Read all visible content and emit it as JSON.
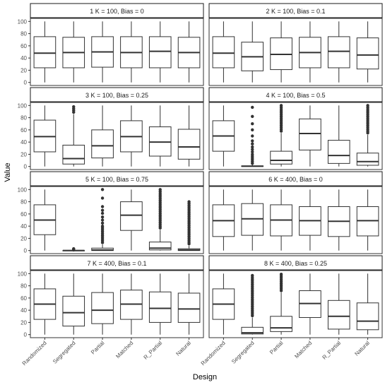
{
  "chart_data": {
    "type": "boxplot",
    "facets": 8,
    "layout": {
      "ncol": 2,
      "nrow": 4
    },
    "xlabel": "Design",
    "ylabel": "Value",
    "categories": [
      "Randomized",
      "Segregated",
      "Partial",
      "Matched",
      "R_Partial",
      "Natural"
    ],
    "yticks": [
      0,
      20,
      40,
      60,
      80,
      100
    ],
    "ylim": [
      -5,
      105
    ],
    "grid": false,
    "panels": [
      {
        "title": "1     K = 100, Bias = 0",
        "boxes": [
          {
            "min": 0,
            "q1": 24,
            "median": 48,
            "q3": 75,
            "max": 100,
            "outliers": []
          },
          {
            "min": 0,
            "q1": 24,
            "median": 49,
            "q3": 74,
            "max": 100,
            "outliers": []
          },
          {
            "min": 0,
            "q1": 25,
            "median": 50,
            "q3": 75,
            "max": 100,
            "outliers": []
          },
          {
            "min": 0,
            "q1": 24,
            "median": 49,
            "q3": 75,
            "max": 100,
            "outliers": []
          },
          {
            "min": 0,
            "q1": 24,
            "median": 51,
            "q3": 75,
            "max": 100,
            "outliers": []
          },
          {
            "min": 0,
            "q1": 24,
            "median": 49,
            "q3": 74,
            "max": 100,
            "outliers": []
          }
        ]
      },
      {
        "title": "2     K = 100, Bias = 0.1",
        "boxes": [
          {
            "min": 0,
            "q1": 24,
            "median": 48,
            "q3": 75,
            "max": 100,
            "outliers": []
          },
          {
            "min": 0,
            "q1": 19,
            "median": 42,
            "q3": 66,
            "max": 100,
            "outliers": []
          },
          {
            "min": 0,
            "q1": 21,
            "median": 46,
            "q3": 73,
            "max": 100,
            "outliers": []
          },
          {
            "min": 0,
            "q1": 24,
            "median": 49,
            "q3": 74,
            "max": 100,
            "outliers": []
          },
          {
            "min": 0,
            "q1": 24,
            "median": 51,
            "q3": 75,
            "max": 100,
            "outliers": []
          },
          {
            "min": 0,
            "q1": 22,
            "median": 45,
            "q3": 73,
            "max": 100,
            "outliers": []
          }
        ]
      },
      {
        "title": "3     K = 100, Bias = 0.25",
        "boxes": [
          {
            "min": 0,
            "q1": 24,
            "median": 49,
            "q3": 76,
            "max": 100,
            "outliers": []
          },
          {
            "min": 0,
            "q1": 4,
            "median": 13,
            "q3": 35,
            "max": 86,
            "outliers": [
              89,
              92,
              95,
              98
            ]
          },
          {
            "min": 0,
            "q1": 14,
            "median": 34,
            "q3": 60,
            "max": 100,
            "outliers": []
          },
          {
            "min": 0,
            "q1": 24,
            "median": 49,
            "q3": 75,
            "max": 100,
            "outliers": []
          },
          {
            "min": 0,
            "q1": 17,
            "median": 40,
            "q3": 65,
            "max": 100,
            "outliers": []
          },
          {
            "min": 0,
            "q1": 12,
            "median": 32,
            "q3": 61,
            "max": 100,
            "outliers": []
          }
        ]
      },
      {
        "title": "4     K = 100, Bias = 0.5",
        "boxes": [
          {
            "min": 0,
            "q1": 25,
            "median": 50,
            "q3": 75,
            "max": 100,
            "outliers": []
          },
          {
            "min": 0,
            "q1": 0,
            "median": 0.5,
            "q3": 1,
            "max": 3,
            "outliers": [
              5,
              8,
              11,
              14,
              17,
              20,
              24,
              28,
              32,
              37,
              42,
              50,
              60,
              70,
              82,
              97
            ]
          },
          {
            "min": 0,
            "q1": 4,
            "median": 10,
            "q3": 25,
            "max": 55,
            "outliers": [
              58,
              61,
              64,
              67,
              70,
              73,
              76,
              79,
              82,
              85,
              88,
              91,
              94,
              97,
              100
            ]
          },
          {
            "min": 0,
            "q1": 27,
            "median": 54,
            "q3": 78,
            "max": 100,
            "outliers": []
          },
          {
            "min": 0,
            "q1": 5,
            "median": 18,
            "q3": 43,
            "max": 100,
            "outliers": []
          },
          {
            "min": 0,
            "q1": 2,
            "median": 8,
            "q3": 22,
            "max": 52,
            "outliers": [
              55,
              58,
              61,
              64,
              67,
              70,
              73,
              76,
              79,
              82,
              85,
              88,
              91,
              94,
              97,
              100
            ]
          }
        ]
      },
      {
        "title": "5     K = 100, Bias = 0.75",
        "boxes": [
          {
            "min": 0,
            "q1": 26,
            "median": 50,
            "q3": 75,
            "max": 100,
            "outliers": []
          },
          {
            "min": 0,
            "q1": 0,
            "median": 0,
            "q3": 0,
            "max": 0,
            "outliers": [
              1,
              2,
              3
            ]
          },
          {
            "min": 0,
            "q1": 0,
            "median": 1,
            "q3": 4,
            "max": 10,
            "outliers": [
              13,
              16,
              19,
              22,
              25,
              28,
              31,
              34,
              37,
              40,
              45,
              50,
              55,
              61,
              66,
              72,
              86,
              100
            ]
          },
          {
            "min": 0,
            "q1": 33,
            "median": 58,
            "q3": 80,
            "max": 100,
            "outliers": []
          },
          {
            "min": 0,
            "q1": 1,
            "median": 4,
            "q3": 14,
            "max": 34,
            "outliers": [
              37,
              40,
              43,
              46,
              49,
              52,
              55,
              58,
              61,
              64,
              67,
              70,
              73,
              76,
              79,
              82,
              85,
              88,
              91,
              94,
              97,
              100
            ]
          },
          {
            "min": 0,
            "q1": 0,
            "median": 1,
            "q3": 3,
            "max": 8,
            "outliers": [
              11,
              14,
              17,
              20,
              23,
              26,
              29,
              32,
              35,
              38,
              41,
              44,
              47,
              50,
              53,
              56,
              59,
              62,
              65,
              68,
              71,
              74,
              77,
              80
            ]
          }
        ]
      },
      {
        "title": "6     K = 400, Bias = 0",
        "boxes": [
          {
            "min": 0,
            "q1": 23,
            "median": 49,
            "q3": 75,
            "max": 100,
            "outliers": []
          },
          {
            "min": 0,
            "q1": 25,
            "median": 52,
            "q3": 77,
            "max": 100,
            "outliers": []
          },
          {
            "min": 0,
            "q1": 24,
            "median": 50,
            "q3": 75,
            "max": 100,
            "outliers": []
          },
          {
            "min": 0,
            "q1": 25,
            "median": 49,
            "q3": 72,
            "max": 100,
            "outliers": []
          },
          {
            "min": 0,
            "q1": 23,
            "median": 48,
            "q3": 72,
            "max": 100,
            "outliers": []
          },
          {
            "min": 0,
            "q1": 24,
            "median": 49,
            "q3": 72,
            "max": 100,
            "outliers": []
          }
        ]
      },
      {
        "title": "7     K = 400, Bias = 0.1",
        "boxes": [
          {
            "min": 0,
            "q1": 25,
            "median": 50,
            "q3": 75,
            "max": 100,
            "outliers": []
          },
          {
            "min": 0,
            "q1": 14,
            "median": 36,
            "q3": 63,
            "max": 100,
            "outliers": []
          },
          {
            "min": 0,
            "q1": 18,
            "median": 40,
            "q3": 69,
            "max": 100,
            "outliers": []
          },
          {
            "min": 0,
            "q1": 25,
            "median": 50,
            "q3": 73,
            "max": 100,
            "outliers": []
          },
          {
            "min": 0,
            "q1": 20,
            "median": 43,
            "q3": 70,
            "max": 100,
            "outliers": []
          },
          {
            "min": 0,
            "q1": 20,
            "median": 42,
            "q3": 68,
            "max": 100,
            "outliers": []
          }
        ]
      },
      {
        "title": "8     K = 400, Bias = 0.25",
        "boxes": [
          {
            "min": 0,
            "q1": 25,
            "median": 50,
            "q3": 75,
            "max": 100,
            "outliers": []
          },
          {
            "min": 0,
            "q1": 1,
            "median": 3,
            "q3": 12,
            "max": 28,
            "outliers": [
              31,
              34,
              37,
              40,
              43,
              46,
              49,
              52,
              55,
              58,
              61,
              64,
              67,
              70,
              73,
              76,
              79,
              82,
              85,
              88,
              91,
              94,
              97
            ]
          },
          {
            "min": 0,
            "q1": 5,
            "median": 11,
            "q3": 30,
            "max": 69,
            "outliers": [
              72,
              75,
              78,
              81,
              84,
              87,
              90,
              93,
              96,
              99
            ]
          },
          {
            "min": 0,
            "q1": 28,
            "median": 51,
            "q3": 72,
            "max": 100,
            "outliers": []
          },
          {
            "min": 0,
            "q1": 9,
            "median": 30,
            "q3": 56,
            "max": 100,
            "outliers": []
          },
          {
            "min": 0,
            "q1": 8,
            "median": 22,
            "q3": 52,
            "max": 100,
            "outliers": []
          }
        ]
      }
    ]
  }
}
